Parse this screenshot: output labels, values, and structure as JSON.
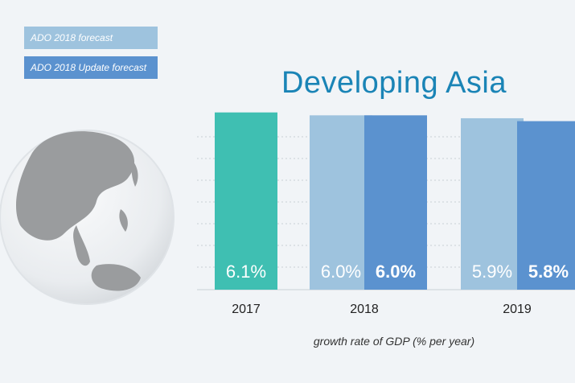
{
  "legend": {
    "items": [
      {
        "label": "ADO 2018 forecast",
        "color": "#9ec3de"
      },
      {
        "label": "ADO 2018 Update forecast",
        "color": "#5b92cf"
      }
    ]
  },
  "title": "Developing Asia",
  "caption": "growth rate of GDP (% per year)",
  "colors": {
    "actual": "#3fbfb2",
    "ado": "#9ec3de",
    "update": "#5b92cf"
  },
  "chart_data": {
    "type": "bar",
    "title": "Developing Asia",
    "xlabel": "growth rate of GDP (% per year)",
    "ylabel": "",
    "categories": [
      "2017",
      "2018",
      "2019"
    ],
    "ylim": [
      0,
      9
    ],
    "bars": [
      {
        "category": "2017",
        "series": "actual",
        "value": 6.1,
        "label": "6.1%"
      },
      {
        "category": "2018",
        "series": "ADO 2018 forecast",
        "value": 6.0,
        "label": "6.0%"
      },
      {
        "category": "2018",
        "series": "ADO 2018 Update forecast",
        "value": 6.0,
        "label": "6.0%"
      },
      {
        "category": "2019",
        "series": "ADO 2018 forecast",
        "value": 5.9,
        "label": "5.9%"
      },
      {
        "category": "2019",
        "series": "ADO 2018 Update forecast",
        "value": 5.8,
        "label": "5.8%"
      }
    ]
  }
}
